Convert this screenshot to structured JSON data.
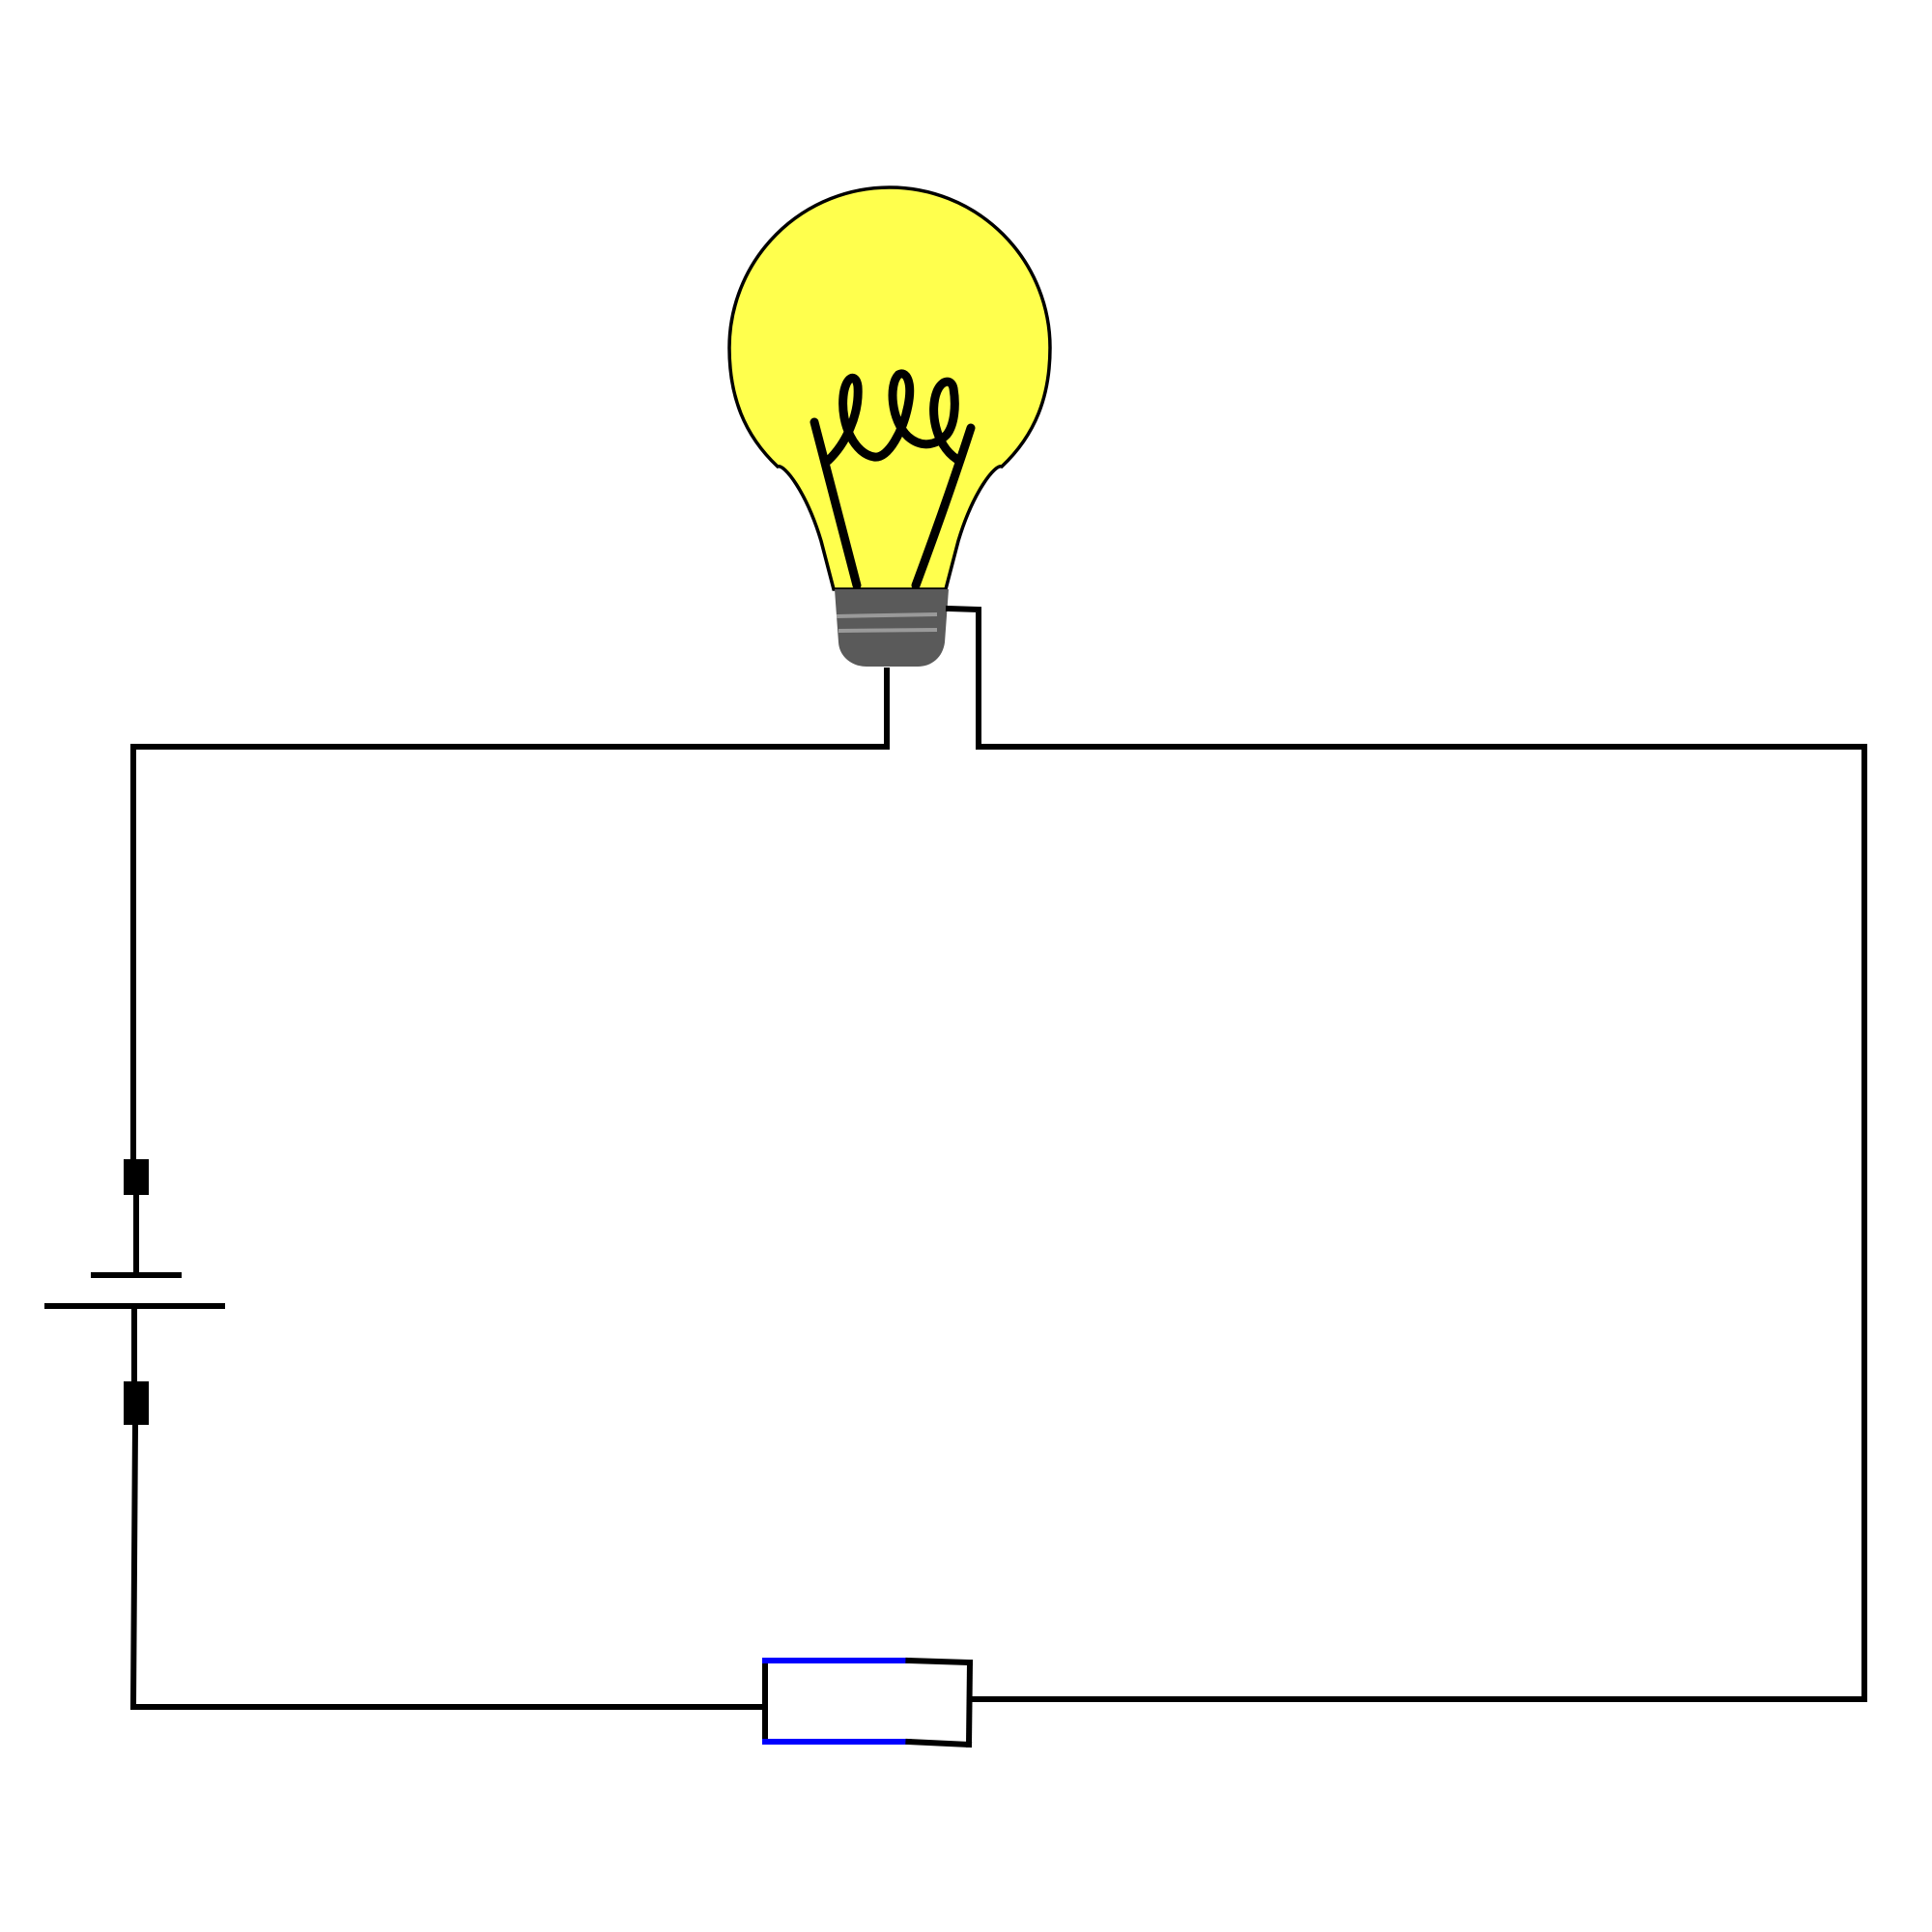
{
  "diagram": {
    "type": "circuit",
    "components": {
      "lamp": {
        "icon": "light-bulb-icon",
        "glass_color": "#FFFF4D",
        "base_color": "#5A5A5A",
        "base_thread_color": "#9A9A9A",
        "filament_color": "#000000"
      },
      "battery": {
        "icon": "battery-cell-icon",
        "color": "#000000"
      },
      "resistor": {
        "icon": "variable-resistor-icon",
        "active_section_color": "#0000FF",
        "inactive_section_color": "#000000",
        "active_fraction": 0.7
      }
    },
    "wire_color": "#000000",
    "background_color": "#FFFFFF"
  }
}
